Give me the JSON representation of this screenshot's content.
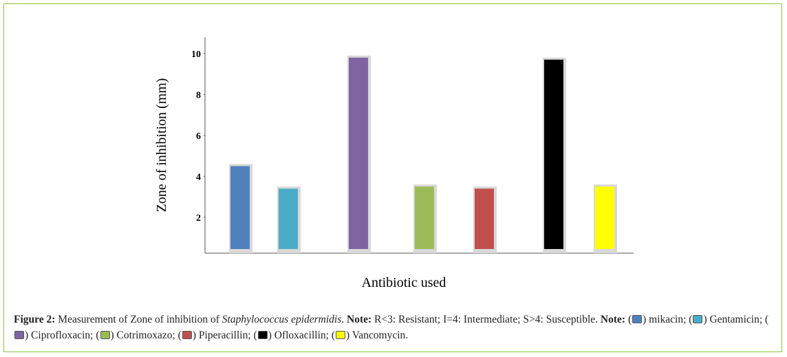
{
  "chart_data": {
    "type": "bar",
    "ylabel": "Zone of inhibition (mm)",
    "xlabel": "Antibiotic used",
    "categories": [
      null,
      null,
      null,
      null,
      null,
      null,
      null
    ],
    "values": [
      4.5,
      3.4,
      9.8,
      3.5,
      3.4,
      9.7,
      3.5
    ],
    "colors": [
      "#4f81bd",
      "#4bacc6",
      "#8064a2",
      "#9bbb59",
      "#c0504d",
      "#000000",
      "#ffff00"
    ],
    "ylim": [
      0.25,
      10.8
    ],
    "yticks": [
      2,
      4,
      6,
      8,
      10
    ],
    "grid": false
  },
  "caption": {
    "label": "Figure 2:",
    "text": "Measurement of Zone of inhibition of",
    "species": "Staphylococcus epidermidis",
    "note_label": "Note:",
    "note_text": "R<3: Resistant; I=4: Intermediate; S>4: Susceptible.",
    "legend_label": "Note:",
    "legend": [
      "mikacin",
      "Gentamicin",
      "Ciprofloxacin",
      "Cotrimoxazo",
      "Piperacillin",
      "Ofloxacillin",
      "Vancomycin"
    ]
  }
}
